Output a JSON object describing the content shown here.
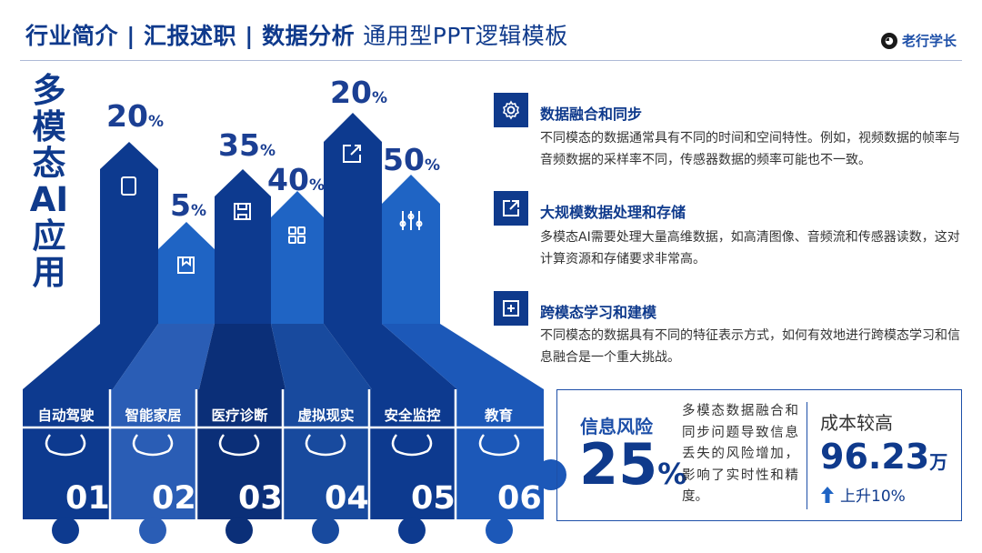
{
  "header": {
    "title_bold": "行业简介 | 汇报述职 | 数据分析",
    "title_light": "通用型PPT逻辑模板",
    "brand": "老行学长"
  },
  "side_title": [
    "多",
    "模",
    "态",
    "AI",
    "应",
    "用"
  ],
  "columns": [
    {
      "label": "自动驾驶",
      "number": "01",
      "percent": "20",
      "unit": "%",
      "icon": "document-icon",
      "color": "#0d3a8f"
    },
    {
      "label": "智能家居",
      "number": "02",
      "percent": "5",
      "unit": "%",
      "icon": "bookmark-icon",
      "color": "#1f64c4"
    },
    {
      "label": "医疗诊断",
      "number": "03",
      "percent": "35",
      "unit": "%",
      "icon": "save-icon",
      "color": "#0d3a8f"
    },
    {
      "label": "虚拟现实",
      "number": "04",
      "percent": "40",
      "unit": "%",
      "icon": "grid-icon",
      "color": "#1f64c4"
    },
    {
      "label": "安全监控",
      "number": "05",
      "percent": "20",
      "unit": "%",
      "icon": "share-icon",
      "color": "#0d3a8f"
    },
    {
      "label": "教育",
      "number": "06",
      "percent": "50",
      "unit": "%",
      "icon": "sliders-icon",
      "color": "#1f64c4"
    }
  ],
  "features": [
    {
      "icon": "gear-icon",
      "title": "数据融合和同步",
      "desc": "不同模态的数据通常具有不同的时间和空间特性。例如，视频数据的帧率与音频数据的采样率不同，传感器数据的频率可能也不一致。"
    },
    {
      "icon": "external-link-icon",
      "title": "大规模数据处理和存储",
      "desc": "多模态AI需要处理大量高维数据，如高清图像、音频流和传感器读数，这对计算资源和存储要求非常高。"
    },
    {
      "icon": "add-box-icon",
      "title": "跨模态学习和建模",
      "desc": "不同模态的数据具有不同的特征表示方式，如何有效地进行跨模态学习和信息融合是一个重大挑战。"
    }
  ],
  "risk": {
    "label": "信息风险",
    "value": "25",
    "unit": "%",
    "desc": "多模态数据融合和同步问题导致信息丢失的风险增加，影响了实时性和精度。"
  },
  "cost": {
    "label": "成本较高",
    "value": "96.23",
    "unit": "万",
    "change": "上升10%"
  }
}
